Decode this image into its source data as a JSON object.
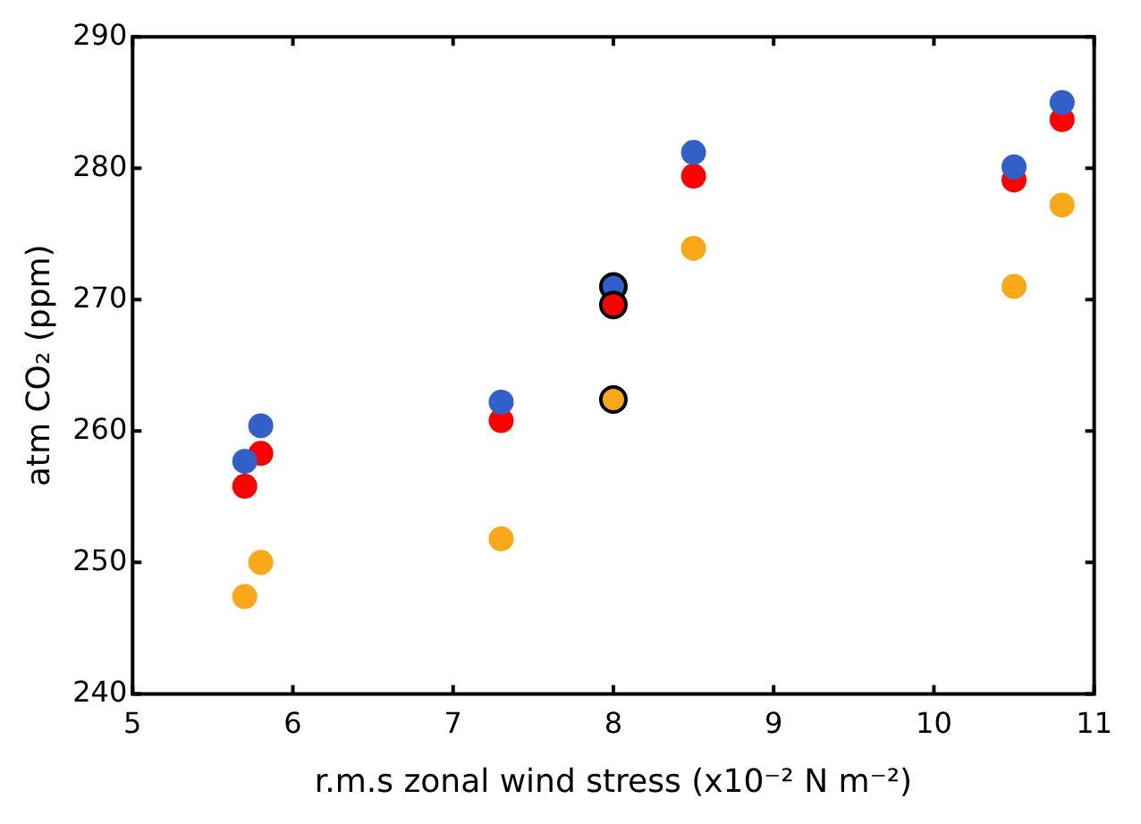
{
  "chart_data": {
    "type": "scatter",
    "xlabel": "r.m.s zonal wind stress (x10⁻² N m⁻²)",
    "ylabel": "atm CO₂ (ppm)",
    "xlim": [
      5,
      11
    ],
    "xticks": [
      5,
      6,
      7,
      8,
      9,
      10,
      11
    ],
    "ylim": [
      240,
      290
    ],
    "yticks": [
      240,
      250,
      260,
      270,
      280,
      290
    ],
    "grid": false,
    "legend": false,
    "marker": "circle",
    "series": [
      {
        "color": "#3060c8",
        "x": [
          5.7,
          5.8,
          7.3,
          8.5,
          10.5,
          10.8
        ],
        "values": [
          257.7,
          260.4,
          262.2,
          281.2,
          280.1,
          285.0
        ]
      },
      {
        "color": "#ff0000",
        "x": [
          5.7,
          5.8,
          7.3,
          8.5,
          10.5,
          10.8
        ],
        "values": [
          255.8,
          258.3,
          260.8,
          279.4,
          279.1,
          283.7
        ]
      },
      {
        "color": "#f8a818",
        "x": [
          5.7,
          5.8,
          7.3,
          8.5,
          10.5,
          10.8
        ],
        "values": [
          247.4,
          250.0,
          251.8,
          273.9,
          271.0,
          277.2
        ]
      },
      {
        "colors": [
          "#3060c8",
          "#ff0000",
          "#f8a818"
        ],
        "x": [
          8,
          8,
          8
        ],
        "values": [
          271.0,
          269.6,
          262.4
        ]
      }
    ]
  }
}
